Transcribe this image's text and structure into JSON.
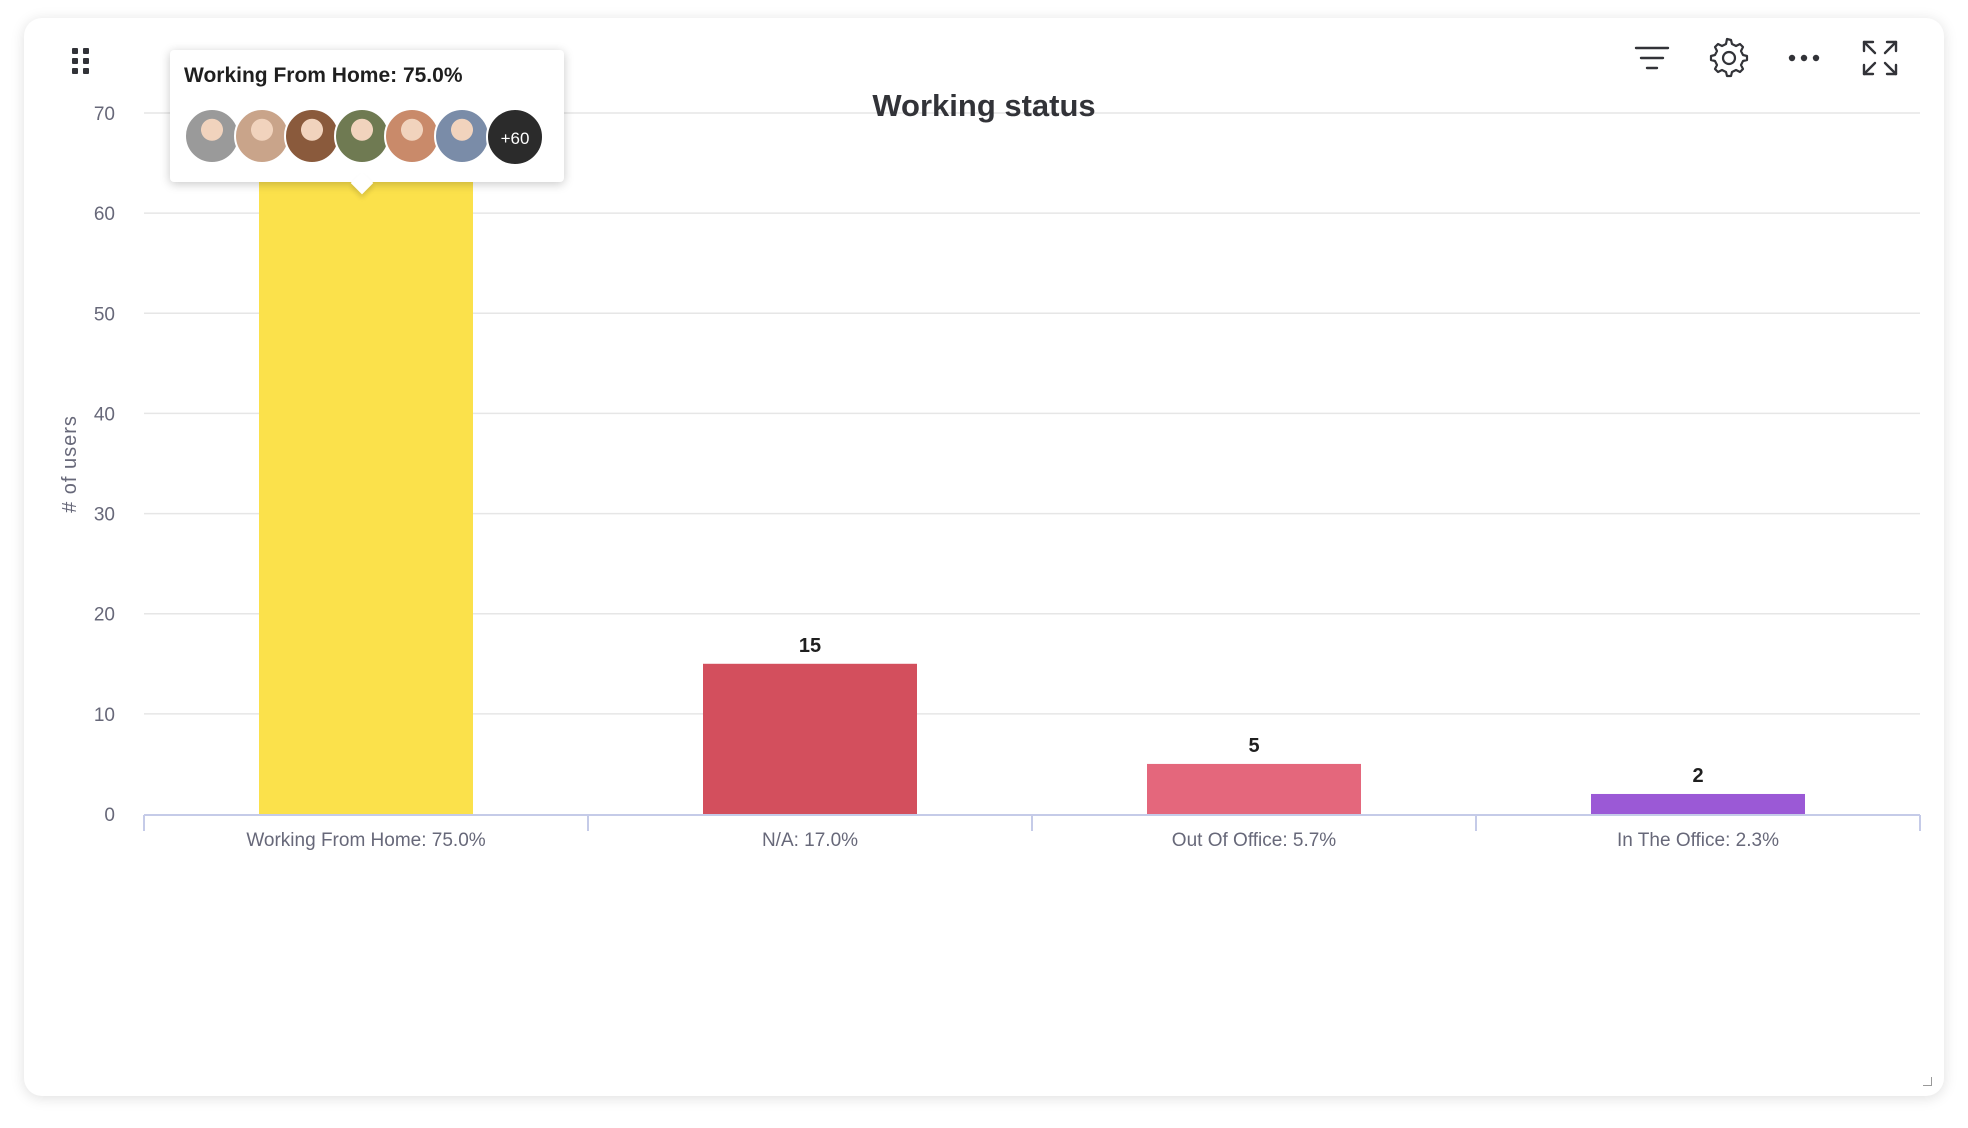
{
  "widget": {
    "title": "Working status",
    "toolbar": {
      "filter_icon": "filter-icon",
      "settings_icon": "gear-icon",
      "more_icon": "more-horizontal-icon",
      "expand_icon": "fullscreen-icon",
      "drag_icon": "drag-grip-icon"
    }
  },
  "tooltip": {
    "title": "Working From Home: 75.0%",
    "avatars": [
      {
        "name": "avatar-1",
        "color": "#9a9a9a"
      },
      {
        "name": "avatar-2",
        "color": "#c9a48a"
      },
      {
        "name": "avatar-3",
        "color": "#8a5a3c"
      },
      {
        "name": "avatar-4",
        "color": "#6f7a52"
      },
      {
        "name": "avatar-5",
        "color": "#c98a6a"
      },
      {
        "name": "avatar-6",
        "color": "#7a8ca8"
      }
    ],
    "more_count": "+60"
  },
  "chart_data": {
    "type": "bar",
    "title": "Working status",
    "xlabel": "",
    "ylabel": "# of users",
    "categories": [
      "Working From Home: 75.0%",
      "N/A: 17.0%",
      "Out Of Office: 5.7%",
      "In The Office: 2.3%"
    ],
    "values": [
      66,
      15,
      5,
      2
    ],
    "colors": [
      "#fbe14b",
      "#d34f5d",
      "#e4677c",
      "#9b59d6"
    ],
    "data_labels": [
      "",
      "15",
      "5",
      "2"
    ],
    "ylim": [
      0,
      70
    ],
    "yticks": [
      0,
      10,
      20,
      30,
      40,
      50,
      60,
      70
    ],
    "grid": true,
    "legend": "none"
  }
}
